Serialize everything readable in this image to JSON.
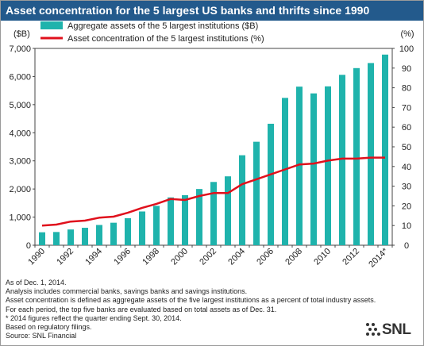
{
  "title": "Asset concentration for the 5 largest US banks and thrifts since 1990",
  "colors": {
    "bar": "#1fb3ac",
    "line": "#e0101c",
    "title_bg": "#235a8c"
  },
  "chart_data": {
    "type": "bar",
    "categories": [
      "1990",
      "1991",
      "1992",
      "1993",
      "1994",
      "1995",
      "1996",
      "1997",
      "1998",
      "1999",
      "2000",
      "2001",
      "2002",
      "2003",
      "2004",
      "2005",
      "2006",
      "2007",
      "2008",
      "2009",
      "2010",
      "2011",
      "2012",
      "2013",
      "2014*"
    ],
    "x_tick_labels": [
      "1990",
      "1992",
      "1994",
      "1996",
      "1998",
      "2000",
      "2002",
      "2004",
      "2006",
      "2008",
      "2010",
      "2012",
      "2014*"
    ],
    "series": [
      {
        "name": "Aggregate assets of the 5 largest institutions ($B)",
        "type": "bar",
        "axis": "left",
        "values": [
          460,
          470,
          560,
          620,
          720,
          800,
          960,
          1200,
          1400,
          1700,
          1780,
          2000,
          2250,
          2450,
          3200,
          3680,
          4320,
          5240,
          5640,
          5400,
          5650,
          6060,
          6300,
          6480,
          6780
        ]
      },
      {
        "name": "Asset concentration of the 5 largest institutions (%)",
        "type": "line",
        "axis": "right",
        "values": [
          10,
          10.5,
          12,
          12.5,
          14,
          14.5,
          16.5,
          19,
          21,
          23.5,
          23,
          25,
          26.5,
          26.5,
          31,
          33.5,
          36,
          38.5,
          41,
          41.5,
          43,
          44,
          44,
          44.5,
          44.5
        ]
      }
    ],
    "ylabel": "($B)",
    "ylabel_right": "(%)",
    "ylim": [
      0,
      7000
    ],
    "ylim_right": [
      0,
      100
    ],
    "y_ticks": [
      "0",
      "1,000",
      "2,000",
      "3,000",
      "4,000",
      "5,000",
      "6,000",
      "7,000"
    ],
    "y_right_ticks": [
      "0",
      "10",
      "20",
      "30",
      "40",
      "50",
      "60",
      "70",
      "80",
      "90",
      "100"
    ],
    "legend_position": "top-left",
    "grid": false
  },
  "notes": [
    "As of Dec. 1, 2014.",
    "Analysis includes commercial banks, savings banks and savings institutions.",
    "Asset concentration is defined as aggregate assets of the five largest institutions as a percent of total industry assets.",
    "For each period, the top five banks are evaluated based on total assets as of Dec. 31.",
    "* 2014 figures reflect the quarter ending Sept. 30, 2014.",
    "Based on regulatory filings.",
    "Source: SNL Financial"
  ],
  "logo_text": "SNL"
}
